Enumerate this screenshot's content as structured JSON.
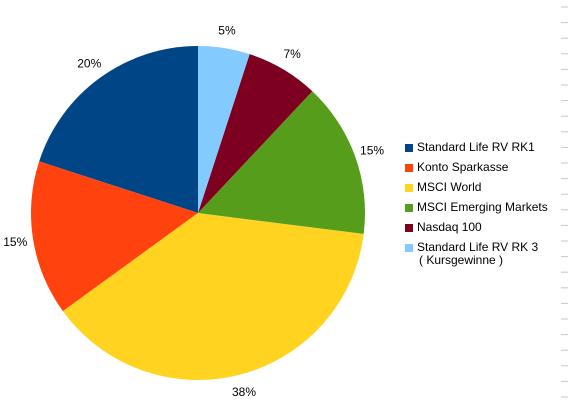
{
  "chart_data": {
    "type": "pie",
    "title": "",
    "categories": [
      "Standard Life RV RK1",
      "Konto Sparkasse",
      "MSCI World",
      "MSCI Emerging Markets",
      "Nasdaq 100",
      "Standard Life RV RK 3"
    ],
    "values": [
      20,
      15,
      38,
      15,
      7,
      5
    ],
    "labels": [
      "20%",
      "15%",
      "38%",
      "15%",
      "7%",
      "5%"
    ],
    "colors": [
      "#004586",
      "#ff420e",
      "#ffd320",
      "#579d1c",
      "#7e0021",
      "#83caff"
    ],
    "legend": {
      "position": "right",
      "entries": [
        {
          "label": "Standard Life RV RK1",
          "color": "#004586"
        },
        {
          "label": "Konto Sparkasse",
          "color": "#ff420e"
        },
        {
          "label": "MSCI World",
          "color": "#ffd320"
        },
        {
          "label": "MSCI Emerging Markets",
          "color": "#579d1c"
        },
        {
          "label": "Nasdaq 100",
          "color": "#7e0021"
        },
        {
          "label": "Standard Life RV RK 3",
          "sublabel": "( Kursgewinne )",
          "color": "#83caff"
        }
      ]
    }
  }
}
